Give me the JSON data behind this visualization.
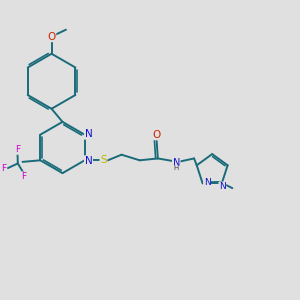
{
  "background_color": "#e0e0e0",
  "figsize": [
    3.0,
    3.0
  ],
  "dpi": 100,
  "atom_colors": {
    "C": "#1a6b7a",
    "N": "#1010cc",
    "O": "#cc2200",
    "S": "#b8b800",
    "F": "#cc00cc",
    "H": "#444444"
  },
  "bond_color": "#1a6b7a",
  "bond_width": 1.4,
  "font_size": 7.5,
  "dbo": 0.006
}
